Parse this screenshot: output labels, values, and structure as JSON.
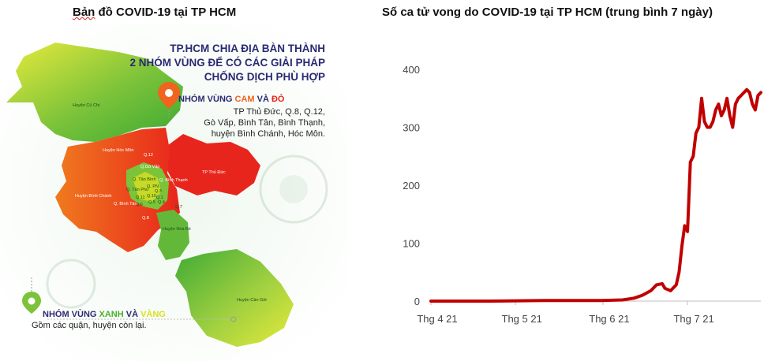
{
  "left_panel": {
    "title_word1": "Bản",
    "title_rest": " đồ COVID-19 tại TP HCM",
    "headline": [
      "TP.HCM CHIA ĐỊA BÀN THÀNH",
      "2 NHÓM VÙNG ĐỂ CÓ CÁC GIẢI PHÁP",
      "CHỐNG DỊCH PHÙ HỢP"
    ],
    "group_orange_red": {
      "prefix": "NHÓM VÙNG ",
      "word1": "CAM",
      "mid": " VÀ ",
      "word2": "ĐỎ",
      "lines": [
        "TP Thủ Đức, Q.8, Q.12,",
        "Gò Vấp, Bình Tân, Bình Thạnh,",
        "huyện Bình Chánh, Hóc Môn."
      ]
    },
    "group_green_yellow": {
      "prefix": "NHÓM VÙNG ",
      "word1": "XANH",
      "mid": " VÀ ",
      "word2": "VÀNG",
      "line": "Gồm các quận, huyện còn lại."
    },
    "district_labels": {
      "cu_chi": "Huyện Củ Chi",
      "hoc_mon": "Huyện Hóc Môn",
      "q12": "Q.12",
      "go_vap": "Q.Gò Vấp",
      "tan_binh": "Q. Tân Bình",
      "tan_phu": "Q. Tân Phú",
      "binh_thanh": "Q. Bình Thạnh",
      "pn": "Q. PN",
      "q3": "Q.3",
      "q1": "Q.1",
      "q10": "Q.10",
      "q11": "Q.11",
      "q5": "Q.5",
      "q4": "Q.4",
      "q6": "Q.6",
      "binh_tan": "Q. Bình Tân",
      "binh_chanh": "Huyện Bình Chánh",
      "q8": "Q.8",
      "q7": "Q.7",
      "nha_be": "Huyện Nhà Bè",
      "thu_duc": "TP Thủ Đức",
      "can_gio": "Huyện Cần Giờ"
    },
    "colors": {
      "red": "#e8251c",
      "orange": "#f0641e",
      "green": "#4caf2a",
      "yellow": "#d9e021"
    }
  },
  "right_panel": {
    "title": "Số ca tử vong do COVID-19 tại TP HCM (trung bình 7 ngày)"
  },
  "chart_data": {
    "type": "line",
    "title": "Số ca tử vong do COVID-19 tại TP HCM (trung bình 7 ngày)",
    "x_tick_labels": [
      "Thg 4 21",
      "Thg 5 21",
      "Thg 6 21",
      "Thg 7 21"
    ],
    "x_ticks_day": [
      0,
      30,
      61,
      91
    ],
    "ylim": [
      0,
      400
    ],
    "y_ticks": [
      0,
      100,
      200,
      300,
      400
    ],
    "grid": false,
    "line_color": "#c00000",
    "series": [
      {
        "x_day": [
          0,
          20,
          40,
          60,
          68,
          72,
          75,
          78,
          80,
          82,
          83,
          85,
          87,
          88,
          89,
          90,
          91,
          92,
          93,
          94,
          95,
          96,
          97,
          98,
          99,
          100,
          101,
          102,
          103,
          104,
          105,
          106,
          107,
          108,
          109,
          110,
          111,
          112,
          113,
          114,
          115,
          116,
          117
        ],
        "y": [
          0,
          0,
          1,
          1,
          2,
          5,
          10,
          18,
          28,
          30,
          22,
          18,
          28,
          50,
          95,
          130,
          120,
          240,
          250,
          290,
          300,
          350,
          310,
          300,
          300,
          310,
          330,
          340,
          320,
          330,
          350,
          320,
          300,
          340,
          350,
          355,
          360,
          365,
          360,
          340,
          330,
          355,
          360
        ]
      }
    ]
  }
}
